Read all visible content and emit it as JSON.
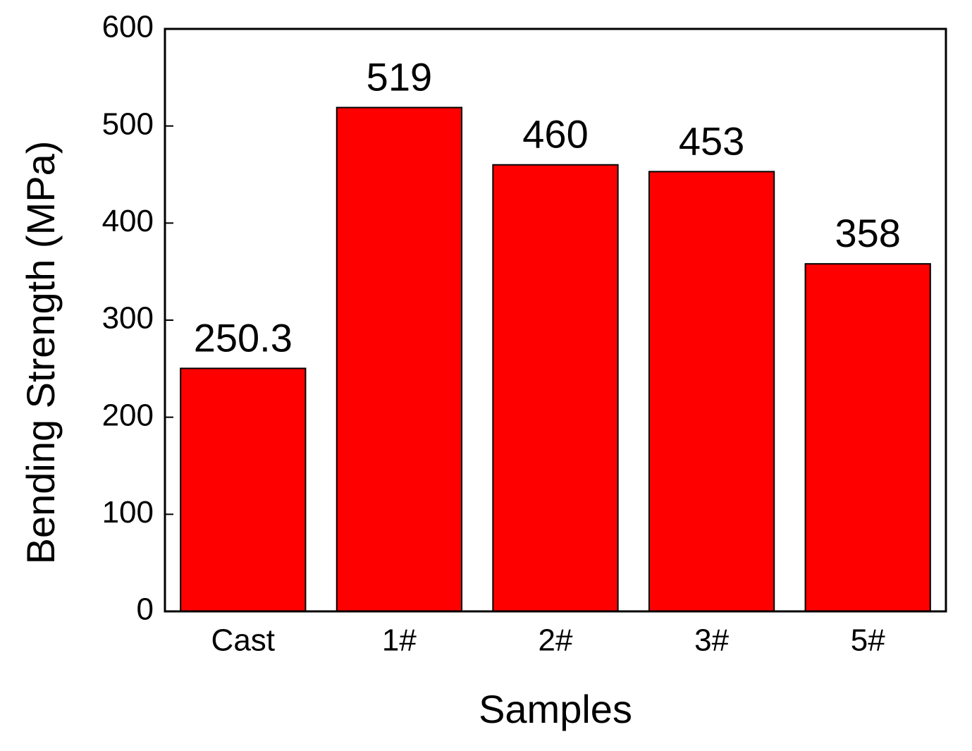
{
  "chart_data": {
    "type": "bar",
    "xlabel": "Samples",
    "ylabel": "Bending Strength (MPa)",
    "categories": [
      "Cast",
      "1#",
      "2#",
      "3#",
      "5#"
    ],
    "values": [
      250.3,
      519,
      460,
      453,
      358
    ],
    "color": "#ff0000",
    "ylim": [
      0,
      600
    ],
    "yticks": [
      0,
      100,
      200,
      300,
      400,
      500,
      600
    ]
  }
}
